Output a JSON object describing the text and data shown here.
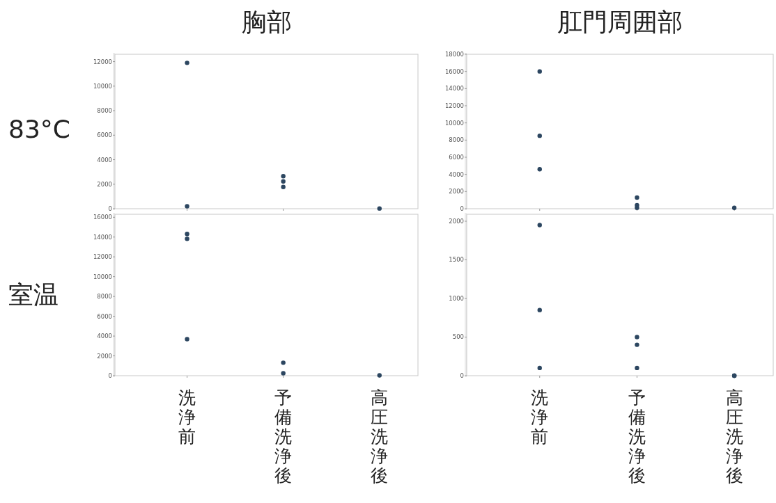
{
  "chart_data": [
    {
      "type": "scatter",
      "title": "胸部",
      "ylabel": "83°C",
      "categories": [
        "洗浄前",
        "予備洗浄後",
        "高圧洗浄後"
      ],
      "ylim": [
        0,
        12600
      ],
      "yticks": [
        0,
        2000,
        4000,
        6000,
        8000,
        10000,
        12000
      ],
      "tick_labels": "y",
      "marker": "circle",
      "series": [
        {
          "color": "#2c4660",
          "x": [
            "洗浄前",
            "洗浄前",
            "予備洗浄後",
            "予備洗浄後",
            "予備洗浄後",
            "高圧洗浄後"
          ],
          "values": [
            11900,
            200,
            2650,
            2230,
            1770,
            20
          ]
        }
      ]
    },
    {
      "type": "scatter",
      "title": "肛門周囲部",
      "categories": [
        "洗浄前",
        "予備洗浄後",
        "高圧洗浄後"
      ],
      "ylim": [
        0,
        18000
      ],
      "yticks": [
        0,
        2000,
        4000,
        6000,
        8000,
        10000,
        12000,
        14000,
        16000,
        18000
      ],
      "tick_labels": "y",
      "marker": "circle",
      "series": [
        {
          "color": "#2c4660",
          "x": [
            "洗浄前",
            "洗浄前",
            "洗浄前",
            "予備洗浄後",
            "予備洗浄後",
            "予備洗浄後",
            "高圧洗浄後"
          ],
          "values": [
            16000,
            8500,
            4600,
            1300,
            400,
            100,
            100
          ]
        }
      ]
    },
    {
      "type": "scatter",
      "ylabel": "室温",
      "categories": [
        "洗浄前",
        "予備洗浄後",
        "高圧洗浄後"
      ],
      "ylim": [
        0,
        16300
      ],
      "yticks": [
        0,
        2000,
        4000,
        6000,
        8000,
        10000,
        12000,
        14000,
        16000
      ],
      "marker": "circle",
      "series": [
        {
          "color": "#2c4660",
          "x": [
            "洗浄前",
            "洗浄前",
            "洗浄前",
            "予備洗浄後",
            "予備洗浄後",
            "高圧洗浄後"
          ],
          "values": [
            14320,
            13820,
            3690,
            1310,
            250,
            30
          ]
        }
      ]
    },
    {
      "type": "scatter",
      "categories": [
        "洗浄前",
        "予備洗浄後",
        "高圧洗浄後"
      ],
      "ylim": [
        0,
        2090
      ],
      "yticks": [
        0,
        500,
        1000,
        1500,
        2000
      ],
      "marker": "circle",
      "series": [
        {
          "color": "#2c4660",
          "x": [
            "洗浄前",
            "洗浄前",
            "洗浄前",
            "予備洗浄後",
            "予備洗浄後",
            "予備洗浄後",
            "高圧洗浄後",
            "高圧洗浄後",
            "高圧洗浄後"
          ],
          "values": [
            1950,
            850,
            100,
            500,
            400,
            100,
            0,
            0,
            0
          ]
        }
      ]
    }
  ]
}
